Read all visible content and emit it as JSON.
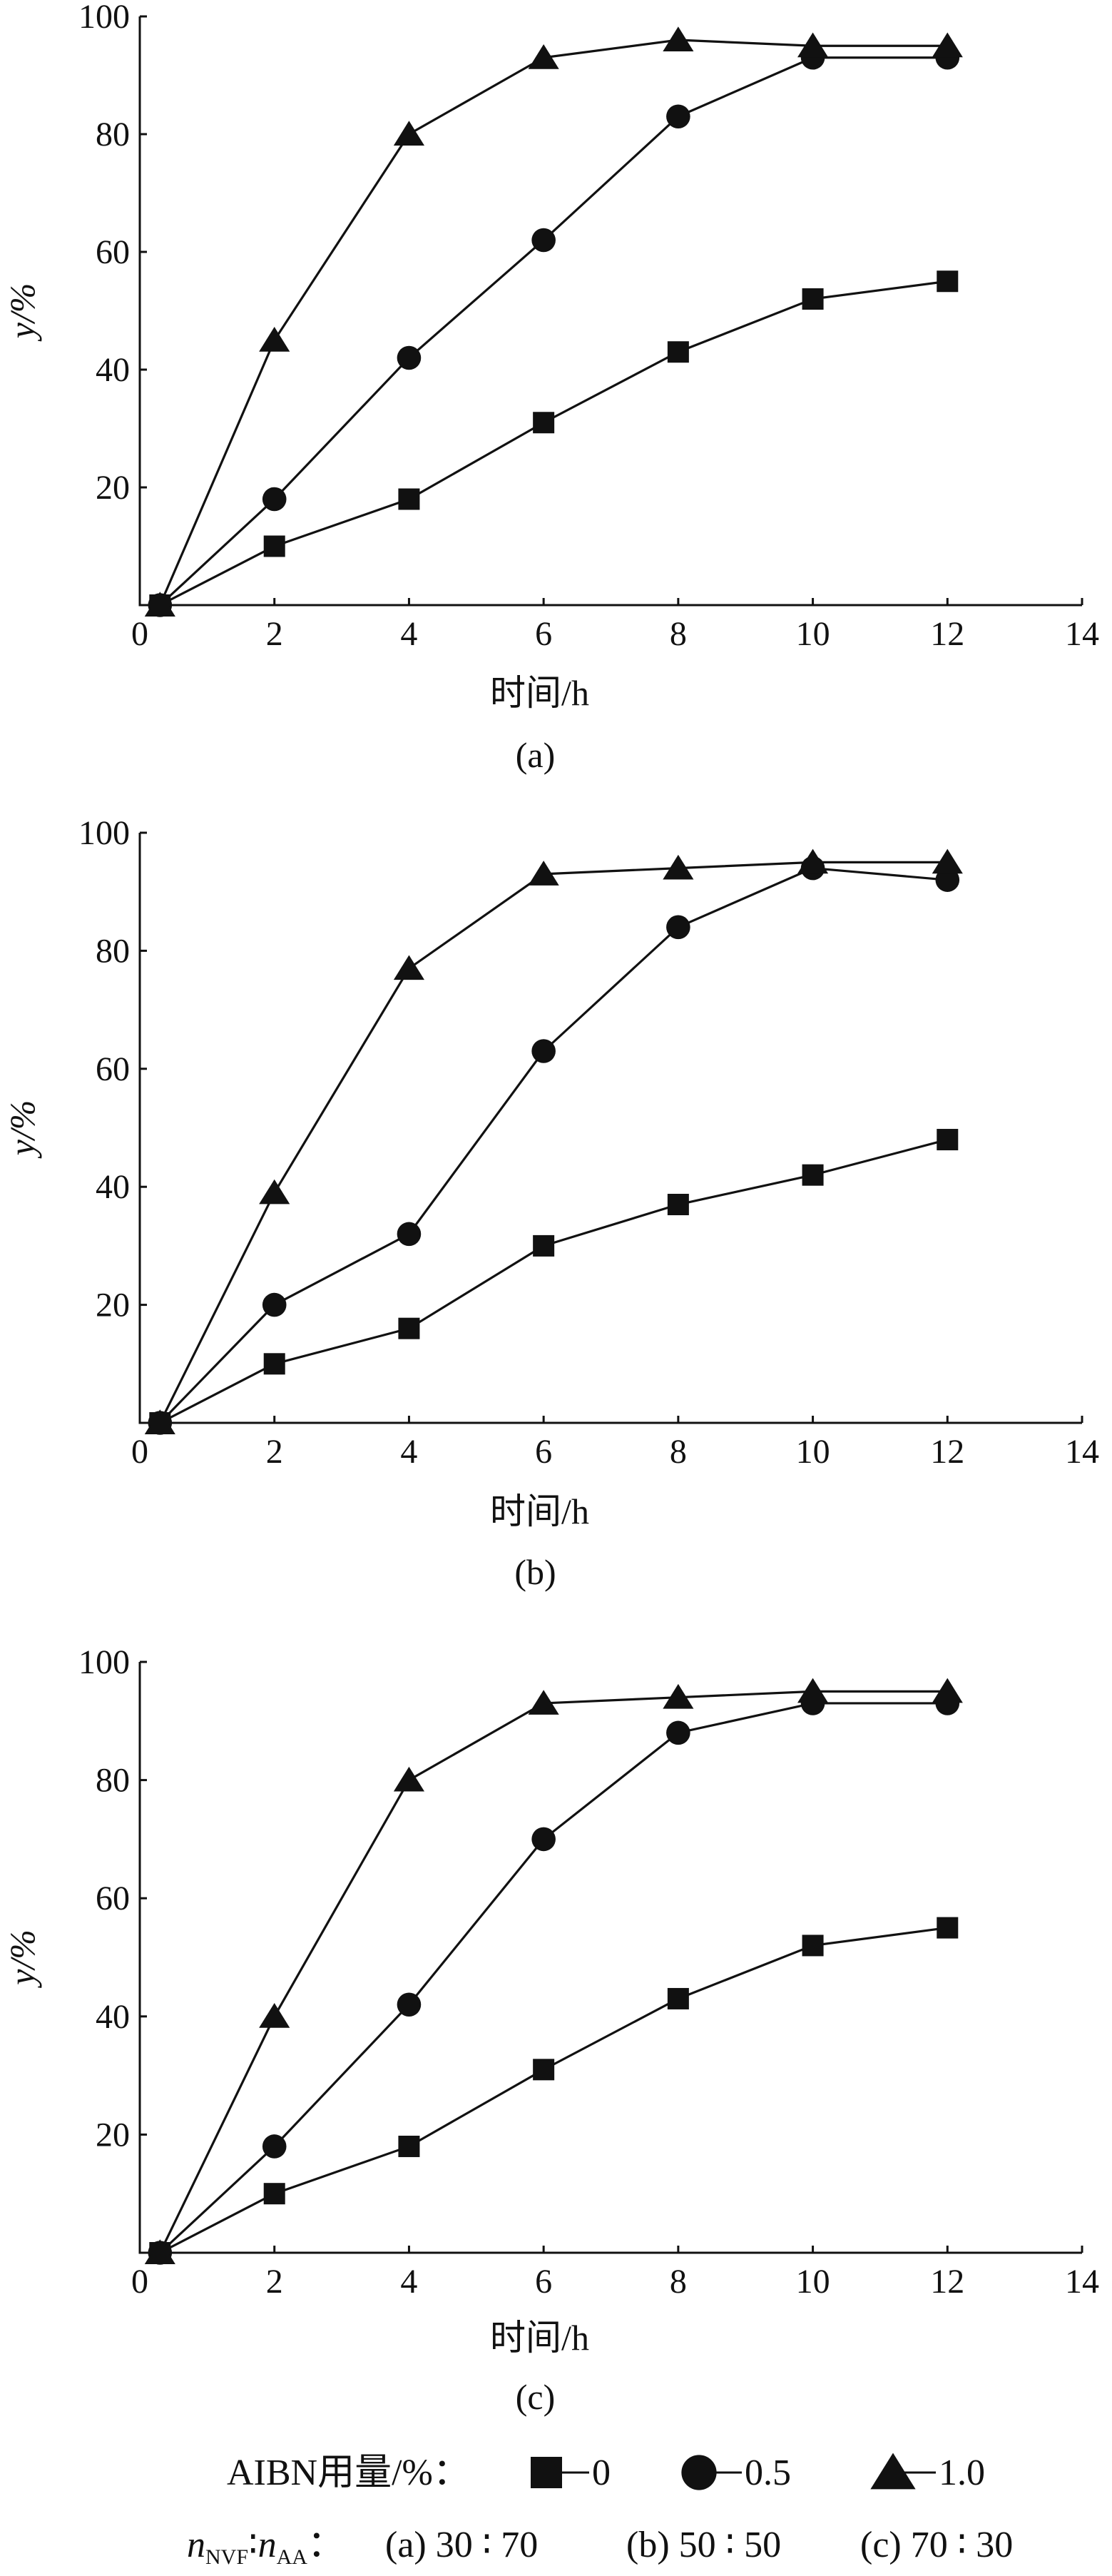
{
  "chart_data": [
    {
      "type": "line",
      "panel_label": "(a)",
      "xlabel": "时间/h",
      "ylabel": "y/%",
      "xlim": [
        0,
        14
      ],
      "ylim": [
        0,
        100
      ],
      "xticks": [
        "0",
        "2",
        "4",
        "6",
        "8",
        "10",
        "12",
        "14"
      ],
      "yticks": [
        "20",
        "40",
        "60",
        "80",
        "100"
      ],
      "x": [
        0.3,
        2,
        4,
        6,
        8,
        10,
        12
      ],
      "series": [
        {
          "name": "0",
          "marker": "square",
          "values": [
            0,
            10,
            18,
            31,
            43,
            52,
            55
          ]
        },
        {
          "name": "0.5",
          "marker": "circle",
          "values": [
            0,
            18,
            42,
            62,
            83,
            93,
            93
          ]
        },
        {
          "name": "1.0",
          "marker": "triangle",
          "values": [
            0,
            45,
            80,
            93,
            96,
            95,
            95
          ]
        }
      ]
    },
    {
      "type": "line",
      "panel_label": "(b)",
      "xlabel": "时间/h",
      "ylabel": "y/%",
      "xlim": [
        0,
        14
      ],
      "ylim": [
        0,
        100
      ],
      "xticks": [
        "0",
        "2",
        "4",
        "6",
        "8",
        "10",
        "12",
        "14"
      ],
      "yticks": [
        "20",
        "40",
        "60",
        "80",
        "100"
      ],
      "x": [
        0.3,
        2,
        4,
        6,
        8,
        10,
        12
      ],
      "series": [
        {
          "name": "0",
          "marker": "square",
          "values": [
            0,
            10,
            16,
            30,
            37,
            42,
            48
          ]
        },
        {
          "name": "0.5",
          "marker": "circle",
          "values": [
            0,
            20,
            32,
            63,
            84,
            94,
            92
          ]
        },
        {
          "name": "1.0",
          "marker": "triangle",
          "values": [
            0,
            39,
            77,
            93,
            94,
            95,
            95
          ]
        }
      ]
    },
    {
      "type": "line",
      "panel_label": "(c)",
      "xlabel": "时间/h",
      "ylabel": "y/%",
      "xlim": [
        0,
        14
      ],
      "ylim": [
        0,
        100
      ],
      "xticks": [
        "0",
        "2",
        "4",
        "6",
        "8",
        "10",
        "12",
        "14"
      ],
      "yticks": [
        "20",
        "40",
        "60",
        "80",
        "100"
      ],
      "x": [
        0.3,
        2,
        4,
        6,
        8,
        10,
        12
      ],
      "series": [
        {
          "name": "0",
          "marker": "square",
          "values": [
            0,
            10,
            18,
            31,
            43,
            52,
            55
          ]
        },
        {
          "name": "0.5",
          "marker": "circle",
          "values": [
            0,
            18,
            42,
            70,
            88,
            93,
            93
          ]
        },
        {
          "name": "1.0",
          "marker": "triangle",
          "values": [
            0,
            40,
            80,
            93,
            94,
            95,
            95
          ]
        }
      ]
    }
  ],
  "legend": {
    "title": "AIBN用量/%：",
    "items": [
      {
        "marker": "square",
        "label": "0"
      },
      {
        "marker": "circle",
        "label": "0.5"
      },
      {
        "marker": "triangle",
        "label": "1.0"
      }
    ],
    "ratio_n1": "n",
    "ratio_sub1": "NVF",
    "ratio_sep": "∶",
    "ratio_n2": "n",
    "ratio_sub2": "AA",
    "ratio_colon": "：",
    "ratios": [
      "(a) 30 ∶ 70",
      "(b) 50 ∶ 50",
      "(c) 70 ∶ 30"
    ]
  }
}
